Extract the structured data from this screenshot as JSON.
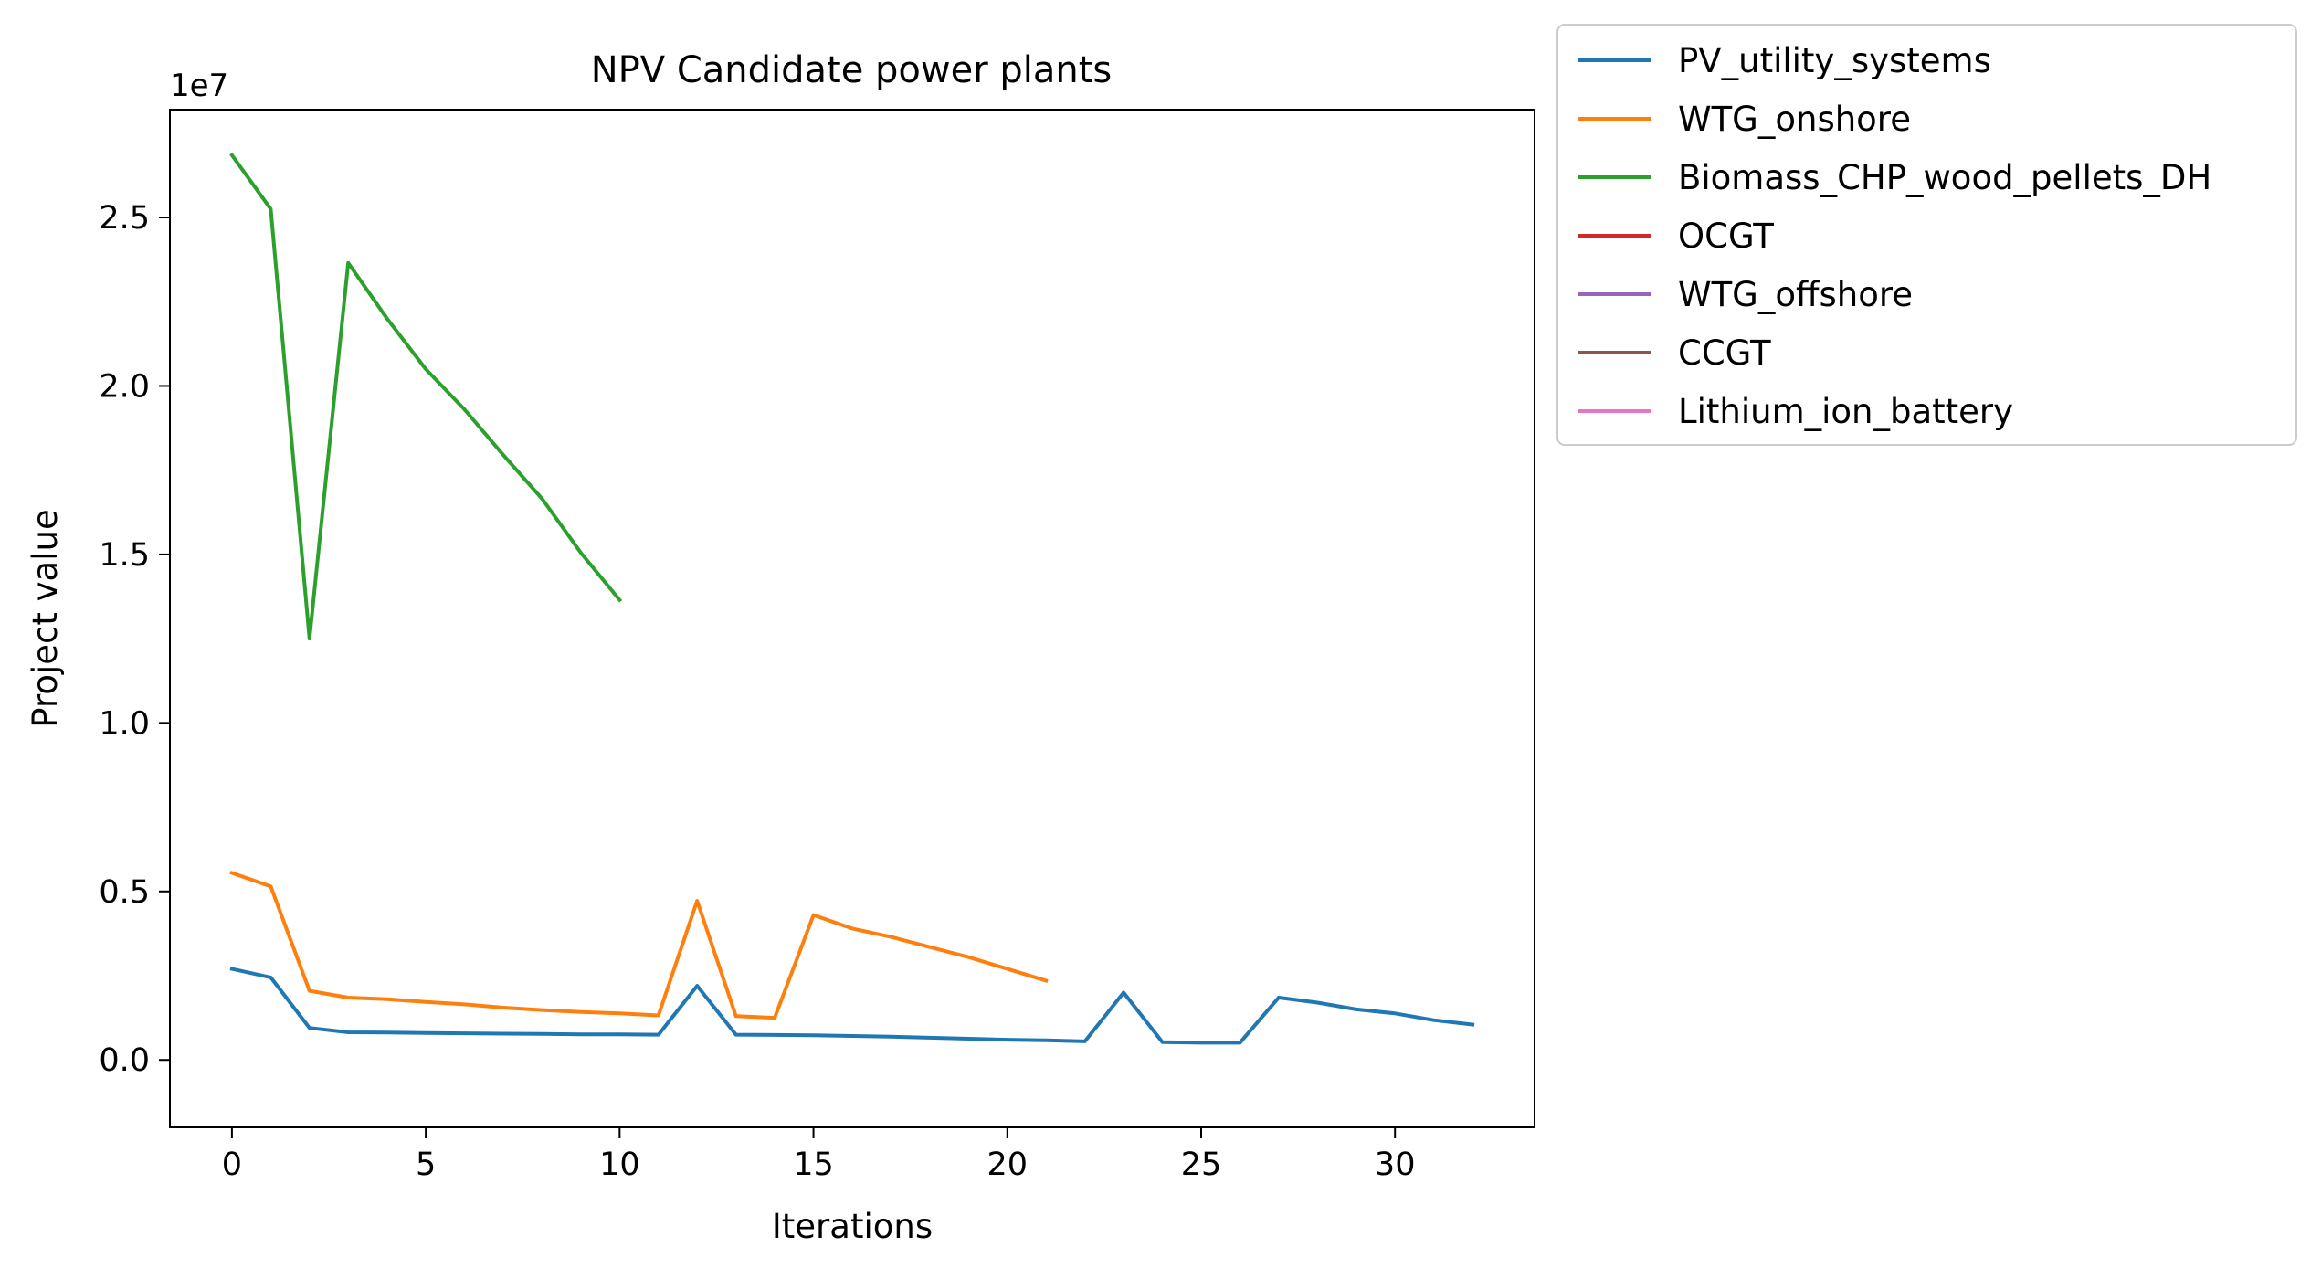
{
  "chart_data": {
    "type": "line",
    "title": "NPV Candidate power plants",
    "xlabel": "Iterations",
    "ylabel": "Project value",
    "offset_label": "1e7",
    "xlim": [
      -1.6,
      33.6
    ],
    "ylim": [
      -0.2,
      2.82
    ],
    "y_multiplier": 10000000,
    "xticks": [
      0,
      5,
      10,
      15,
      20,
      25,
      30
    ],
    "xtick_labels": [
      "0",
      "5",
      "10",
      "15",
      "20",
      "25",
      "30"
    ],
    "yticks": [
      0.0,
      0.5,
      1.0,
      1.5,
      2.0,
      2.5
    ],
    "ytick_labels": [
      "0.0",
      "0.5",
      "1.0",
      "1.5",
      "2.0",
      "2.5"
    ],
    "grid": false,
    "legend_position": "outside upper right",
    "series": [
      {
        "name": "PV_utility_systems",
        "color": "#1f77b4",
        "x": [
          0,
          1,
          2,
          3,
          4,
          5,
          6,
          7,
          8,
          9,
          10,
          11,
          12,
          13,
          14,
          15,
          16,
          17,
          18,
          19,
          20,
          21,
          22,
          23,
          24,
          25,
          26,
          27,
          28,
          29,
          30,
          31,
          32
        ],
        "y": [
          0.27,
          0.245,
          0.095,
          0.082,
          0.081,
          0.08,
          0.079,
          0.078,
          0.077,
          0.076,
          0.076,
          0.075,
          0.22,
          0.075,
          0.074,
          0.073,
          0.071,
          0.069,
          0.066,
          0.063,
          0.06,
          0.058,
          0.055,
          0.2,
          0.053,
          0.051,
          0.051,
          0.185,
          0.17,
          0.15,
          0.138,
          0.118,
          0.105
        ]
      },
      {
        "name": "WTG_onshore",
        "color": "#ff7f0e",
        "x": [
          0,
          1,
          2,
          3,
          4,
          5,
          6,
          7,
          8,
          9,
          10,
          11,
          12,
          13,
          14,
          15,
          16,
          17,
          18,
          19,
          20,
          21
        ],
        "y": [
          0.555,
          0.515,
          0.205,
          0.185,
          0.18,
          0.172,
          0.165,
          0.155,
          0.148,
          0.142,
          0.138,
          0.132,
          0.472,
          0.13,
          0.125,
          0.43,
          0.39,
          0.365,
          0.335,
          0.305,
          0.27,
          0.235
        ]
      },
      {
        "name": "Biomass_CHP_wood_pellets_DH",
        "color": "#2ca02c",
        "x": [
          0,
          1,
          2,
          3,
          4,
          5,
          6,
          7,
          8,
          9,
          10
        ],
        "y": [
          2.685,
          2.525,
          1.25,
          2.365,
          2.2,
          2.05,
          1.93,
          1.795,
          1.665,
          1.505,
          1.365
        ]
      },
      {
        "name": "OCGT",
        "color": "#d62728",
        "x": [],
        "y": []
      },
      {
        "name": "WTG_offshore",
        "color": "#9467bd",
        "x": [],
        "y": []
      },
      {
        "name": "CCGT",
        "color": "#8c564b",
        "x": [],
        "y": []
      },
      {
        "name": "Lithium_ion_battery",
        "color": "#e377c2",
        "x": [],
        "y": []
      }
    ]
  }
}
